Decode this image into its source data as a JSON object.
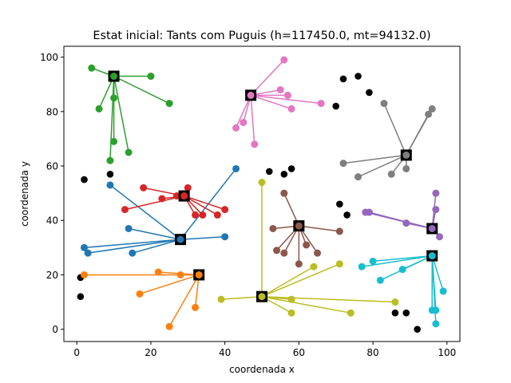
{
  "chart_data": {
    "type": "scatter",
    "title": "Estat inicial: Tants com Puguis (h=117450.0, mt=94132.0)",
    "xlabel": "coordenada x",
    "ylabel": "coordenada y",
    "xlim": [
      -3.5,
      103.5
    ],
    "ylim": [
      -4.5,
      104
    ],
    "xticks": [
      0,
      20,
      40,
      60,
      80,
      100
    ],
    "yticks": [
      0,
      20,
      40,
      60,
      80,
      100
    ],
    "grid": false,
    "unassigned_color": "#000000",
    "unassigned_points": [
      [
        2,
        55
      ],
      [
        9,
        57
      ],
      [
        1,
        19
      ],
      [
        1,
        12
      ],
      [
        52,
        58
      ],
      [
        56,
        57
      ],
      [
        58,
        59
      ],
      [
        72,
        92
      ],
      [
        76,
        93
      ],
      [
        79,
        87
      ],
      [
        70,
        82
      ],
      [
        71,
        46
      ],
      [
        73,
        42
      ],
      [
        86,
        6
      ],
      [
        89,
        6
      ],
      [
        92,
        0
      ]
    ],
    "groups": [
      {
        "color": "#2ca02c",
        "center": [
          10,
          93
        ],
        "points": [
          [
            4,
            96
          ],
          [
            20,
            93
          ],
          [
            25,
            83
          ],
          [
            6,
            81
          ],
          [
            10,
            85
          ],
          [
            10,
            69
          ],
          [
            14,
            65
          ],
          [
            9,
            62
          ]
        ]
      },
      {
        "color": "#e377c2",
        "center": [
          47,
          86
        ],
        "points": [
          [
            56,
            99
          ],
          [
            55,
            88
          ],
          [
            57,
            86
          ],
          [
            66,
            83
          ],
          [
            58,
            81
          ],
          [
            45,
            76
          ],
          [
            43,
            74
          ],
          [
            48,
            68
          ]
        ]
      },
      {
        "color": "#7f7f7f",
        "center": [
          89,
          64
        ],
        "points": [
          [
            83,
            83
          ],
          [
            96,
            81
          ],
          [
            95,
            79
          ],
          [
            72,
            61
          ],
          [
            76,
            56
          ],
          [
            89,
            59
          ],
          [
            85,
            57
          ]
        ]
      },
      {
        "color": "#1f77b4",
        "center": [
          28,
          33
        ],
        "points": [
          [
            43,
            59
          ],
          [
            9,
            53
          ],
          [
            14,
            37
          ],
          [
            40,
            34
          ],
          [
            2,
            30
          ],
          [
            3,
            28
          ],
          [
            15,
            28
          ]
        ]
      },
      {
        "color": "#d62728",
        "center": [
          29,
          49
        ],
        "points": [
          [
            18,
            52
          ],
          [
            30,
            52
          ],
          [
            23,
            48
          ],
          [
            27,
            49
          ],
          [
            13,
            44
          ],
          [
            32,
            42
          ],
          [
            34,
            42
          ],
          [
            38,
            42
          ],
          [
            40,
            44
          ]
        ]
      },
      {
        "color": "#8c564b",
        "center": [
          60,
          38
        ],
        "points": [
          [
            56,
            50
          ],
          [
            53,
            37
          ],
          [
            71,
            36
          ],
          [
            54,
            29
          ],
          [
            56,
            28
          ],
          [
            62,
            31
          ],
          [
            60,
            24
          ],
          [
            65,
            28
          ]
        ]
      },
      {
        "color": "#9467bd",
        "center": [
          96,
          37
        ],
        "points": [
          [
            97,
            50
          ],
          [
            97,
            44
          ],
          [
            79,
            43
          ],
          [
            78,
            43
          ],
          [
            89,
            39
          ],
          [
            98,
            34
          ]
        ]
      },
      {
        "color": "#ff7f0e",
        "center": [
          33,
          20
        ],
        "points": [
          [
            2,
            20
          ],
          [
            22,
            21
          ],
          [
            28,
            20
          ],
          [
            17,
            13
          ],
          [
            32,
            8
          ],
          [
            25,
            1
          ]
        ]
      },
      {
        "color": "#bcbd22",
        "center": [
          50,
          12
        ],
        "points": [
          [
            50,
            54
          ],
          [
            64,
            23
          ],
          [
            71,
            24
          ],
          [
            39,
            11
          ],
          [
            58,
            11
          ],
          [
            86,
            10
          ],
          [
            58,
            6
          ],
          [
            74,
            6
          ]
        ]
      },
      {
        "color": "#17becf",
        "center": [
          96,
          27
        ],
        "points": [
          [
            80,
            25
          ],
          [
            77,
            23
          ],
          [
            88,
            22
          ],
          [
            82,
            18
          ],
          [
            99,
            14
          ],
          [
            96,
            7
          ],
          [
            97,
            7
          ],
          [
            97,
            2
          ]
        ]
      }
    ]
  }
}
